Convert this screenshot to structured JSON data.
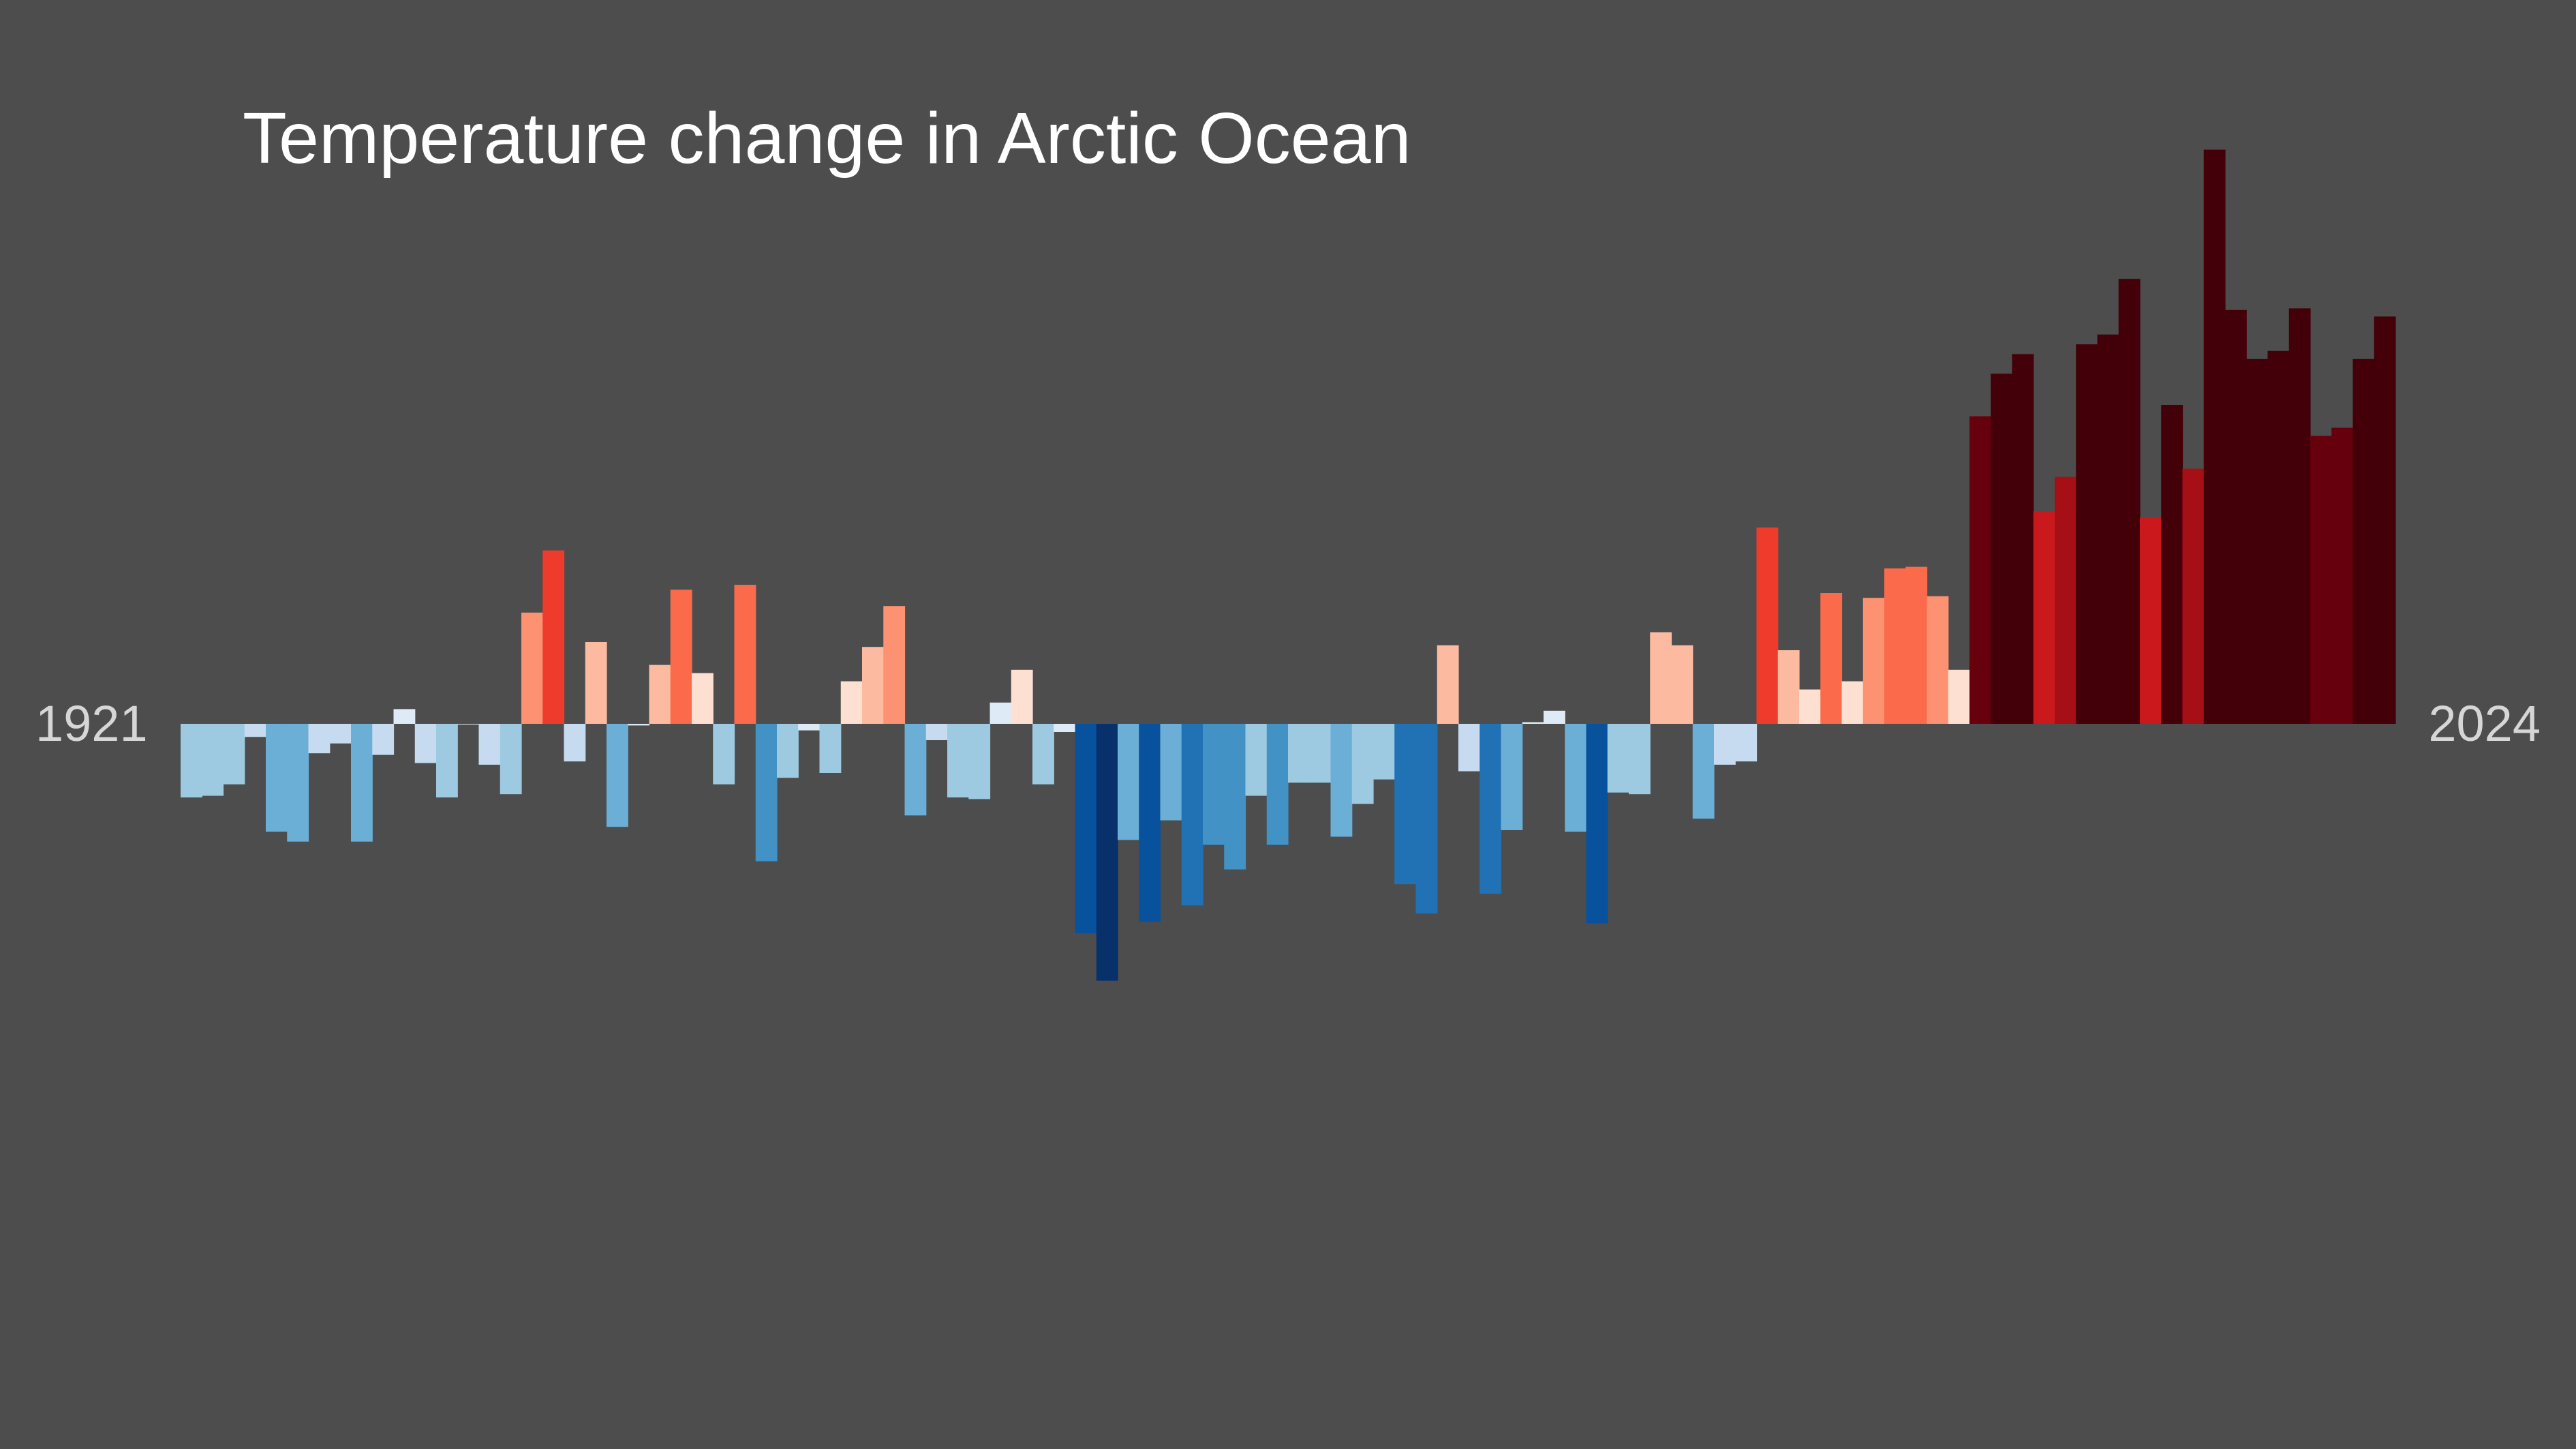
{
  "chart_data": {
    "type": "bar",
    "title": "Temperature change in Arctic Ocean",
    "x_start_label": "1921",
    "x_end_label": "2024",
    "years": [
      1921,
      1922,
      1923,
      1924,
      1925,
      1926,
      1927,
      1928,
      1929,
      1930,
      1931,
      1932,
      1933,
      1934,
      1935,
      1936,
      1937,
      1938,
      1939,
      1940,
      1941,
      1942,
      1943,
      1944,
      1945,
      1946,
      1947,
      1948,
      1949,
      1950,
      1951,
      1952,
      1953,
      1954,
      1955,
      1956,
      1957,
      1958,
      1959,
      1960,
      1961,
      1962,
      1963,
      1964,
      1965,
      1966,
      1967,
      1968,
      1969,
      1970,
      1971,
      1972,
      1973,
      1974,
      1975,
      1976,
      1977,
      1978,
      1979,
      1980,
      1981,
      1982,
      1983,
      1984,
      1985,
      1986,
      1987,
      1988,
      1989,
      1990,
      1991,
      1992,
      1993,
      1994,
      1995,
      1996,
      1997,
      1998,
      1999,
      2000,
      2001,
      2002,
      2003,
      2004,
      2005,
      2006,
      2007,
      2008,
      2009,
      2010,
      2011,
      2012,
      2013,
      2014,
      2015,
      2016,
      2017,
      2018,
      2019,
      2020,
      2021,
      2022,
      2023,
      2024
    ],
    "values": [
      -0.45,
      -0.44,
      -0.37,
      -0.08,
      -0.66,
      -0.72,
      -0.18,
      -0.12,
      -0.72,
      -0.19,
      0.09,
      -0.24,
      -0.45,
      0.0,
      -0.25,
      -0.43,
      0.68,
      1.06,
      -0.23,
      0.5,
      -0.63,
      -0.01,
      0.36,
      0.82,
      0.31,
      -0.37,
      0.85,
      -0.84,
      -0.33,
      -0.04,
      -0.3,
      0.26,
      0.47,
      0.72,
      -0.56,
      -0.1,
      -0.45,
      -0.46,
      0.13,
      0.33,
      -0.37,
      -0.05,
      -1.28,
      -1.57,
      -0.71,
      -1.21,
      -0.59,
      -1.11,
      -0.74,
      -0.89,
      -0.44,
      -0.74,
      -0.36,
      -0.36,
      -0.69,
      -0.49,
      -0.34,
      -0.98,
      -1.16,
      0.48,
      -0.29,
      -1.04,
      -0.65,
      0.01,
      0.08,
      -0.66,
      -1.22,
      -0.42,
      -0.43,
      0.56,
      0.48,
      -0.58,
      -0.25,
      -0.23,
      1.2,
      0.45,
      0.21,
      0.8,
      0.26,
      0.77,
      0.95,
      0.96,
      0.78,
      0.33,
      1.88,
      2.14,
      2.26,
      1.3,
      1.51,
      2.32,
      2.38,
      2.72,
      1.26,
      1.95,
      1.56,
      3.51,
      2.53,
      2.23,
      2.28,
      2.54,
      1.76,
      1.81,
      2.23,
      2.49
    ],
    "ylim": [
      -2.0,
      3.6
    ],
    "grid": false,
    "legend": "none",
    "color_scale": {
      "type": "diverging",
      "min": -1.5,
      "max": 2.0,
      "colors": [
        "#08306b",
        "#08519c",
        "#2171b5",
        "#4292c6",
        "#6baed6",
        "#9ecae1",
        "#c6dbef",
        "#deebf7",
        "#fee0d2",
        "#fcbba1",
        "#fc9272",
        "#fb6a4a",
        "#ef3b2c",
        "#cb181d",
        "#a50f15",
        "#67000d",
        "#430008"
      ]
    },
    "background": "#4d4d4d"
  }
}
